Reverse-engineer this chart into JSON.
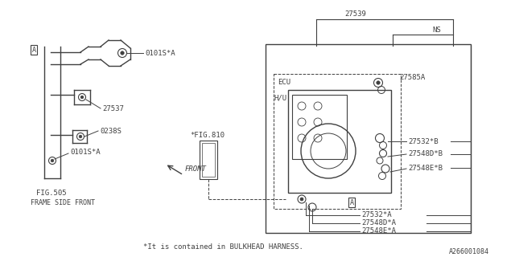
{
  "bg_color": "#ffffff",
  "line_color": "#404040",
  "text_color": "#404040",
  "footnote": "*It is contained in BULKHEAD HARNESS.",
  "part_id": "A266001084",
  "labels": {
    "0101S_A_top": "0101S*A",
    "27537": "27537",
    "0238S": "0238S",
    "0101S_A_bot": "0101S*A",
    "FIG505": "FIG.505",
    "FRAME_SIDE": "FRAME SIDE FRONT",
    "FIG810": "*FIG.810",
    "FRONT": "FRONT",
    "ECU": "ECU",
    "HU": "H/U",
    "27539": "27539",
    "NS": "NS",
    "27585A": "27585A",
    "27532B": "27532*B",
    "27548DB": "27548D*B",
    "27548EB": "27548E*B",
    "27532A": "27532*A",
    "27548DA": "27548D*A",
    "27548EA": "27548E*A"
  }
}
